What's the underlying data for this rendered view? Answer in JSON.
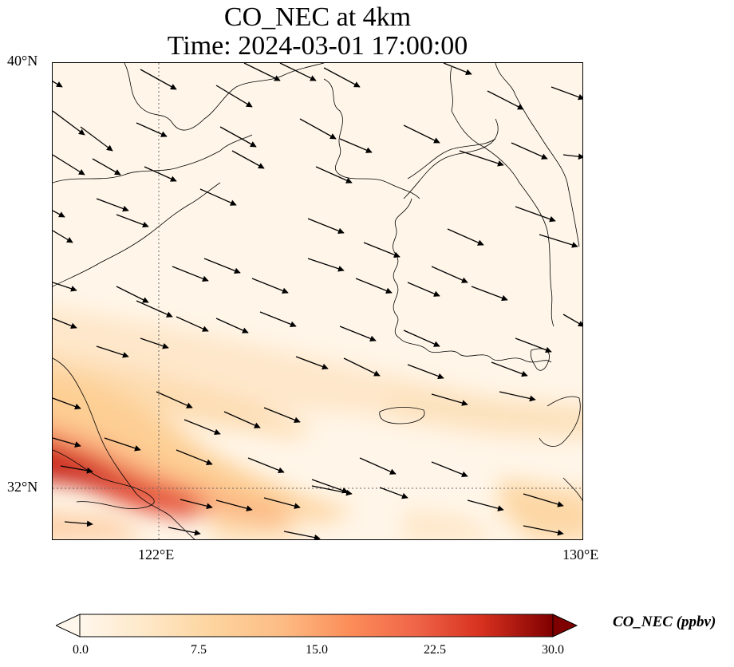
{
  "figure": {
    "title_line1": "CO_NEC at 4km",
    "title_line2": "Time: 2024-03-01 17:00:00"
  },
  "map_data": {
    "type": "field-map",
    "extent": {
      "lon": [
        120,
        130
      ],
      "lat": [
        31,
        40
      ]
    },
    "lat_ticks": [
      {
        "value": 40,
        "label": "40°N"
      },
      {
        "value": 32,
        "label": "32°N"
      }
    ],
    "lon_ticks": [
      {
        "value": 122,
        "label": "122°E"
      },
      {
        "value": 130,
        "label": "130°E"
      }
    ],
    "gridlines": [
      {
        "lon": 122
      },
      {
        "lat": 32
      }
    ],
    "field": "CO_NEC",
    "colormap": "OrRd",
    "colorbar": {
      "label": "CO_NEC (ppbv)",
      "min": 0,
      "max": 30,
      "ticks": [
        "0.0",
        "7.5",
        "15.0",
        "22.5",
        "30.0"
      ],
      "extend": "both"
    },
    "wind": "west-northwest to east-southeast, shown as arrows"
  }
}
